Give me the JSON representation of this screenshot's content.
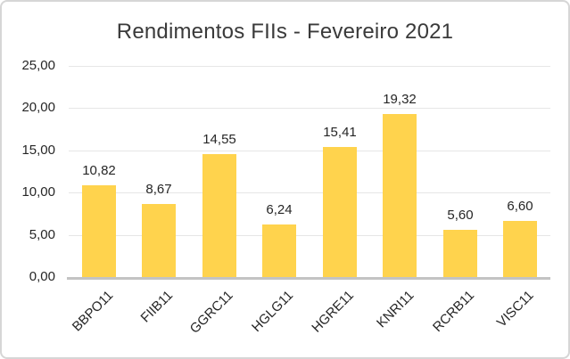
{
  "chart_data": {
    "type": "bar",
    "title": "Rendimentos FIIs - Fevereiro 2021",
    "categories": [
      "BBPO11",
      "FIIB11",
      "GGRC11",
      "HGLG11",
      "HGRE11",
      "KNRI11",
      "RCRB11",
      "VISC11"
    ],
    "values": [
      10.82,
      8.67,
      14.55,
      6.24,
      15.41,
      19.32,
      5.6,
      6.6
    ],
    "value_labels": [
      "10,82",
      "8,67",
      "14,55",
      "6,24",
      "15,41",
      "19,32",
      "5,60",
      "6,60"
    ],
    "xlabel": "",
    "ylabel": "",
    "ylim": [
      0,
      25
    ],
    "yticks": [
      0,
      5,
      10,
      15,
      20,
      25
    ],
    "ytick_labels": [
      "0,00",
      "5,00",
      "10,00",
      "15,00",
      "20,00",
      "25,00"
    ],
    "grid": true,
    "legend": "none",
    "bar_color": "#ffd34d",
    "gridline_color": "#e6e6e6",
    "axis_line_color": "#c3c3c3",
    "text_color": "#262626",
    "title_color": "#3a3a3a",
    "border_color": "#d6d6d6",
    "background_color": "#ffffff"
  }
}
